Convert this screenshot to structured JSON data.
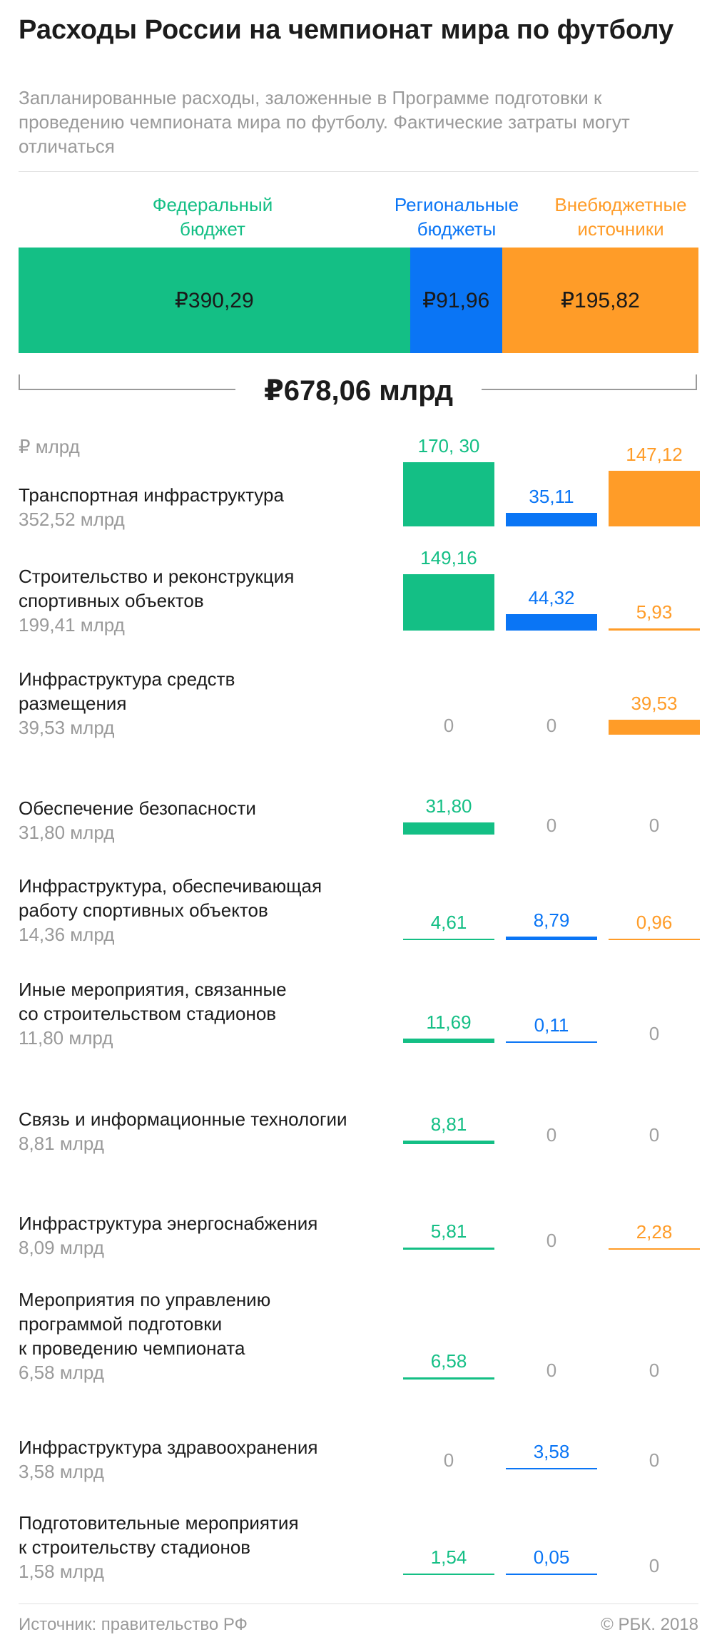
{
  "title": "Расходы России на чемпионат мира по футболу",
  "subtitle": "Запланированные расходы, заложенные в Программе подготовки к проведению чемпионата мира по футболу. Фактические затраты могут отличаться",
  "colors": {
    "federal": "#14bf85",
    "regional": "#0a75f5",
    "offbudget": "#ff9c28",
    "zero": "#a0a0a0"
  },
  "sources": [
    {
      "key": "federal",
      "label": "Федеральный\nбюджет"
    },
    {
      "key": "regional",
      "label": "Региональные\nбюджеты"
    },
    {
      "key": "offbudget",
      "label": "Внебюджетные\nисточники"
    }
  ],
  "total_label": "₽678,06 млрд",
  "unit_label": "₽ млрд",
  "footer": {
    "source": "Источник: правительство РФ",
    "copyright": "© РБК. 2018"
  },
  "chart_data": [
    {
      "type": "bar",
      "title": "",
      "categories": [
        "Федеральный бюджет",
        "Региональные бюджеты",
        "Внебюджетные источники"
      ],
      "values": [
        390.29,
        91.96,
        195.82
      ],
      "value_labels": [
        "₽390,29",
        "₽91,96",
        "₽195,82"
      ],
      "total": 678.06,
      "total_label": "₽678,06 млрд"
    },
    {
      "type": "bar",
      "title": "",
      "unit": "₽ млрд",
      "scale_max": 170.3,
      "series": [
        {
          "name": "Федеральный бюджет",
          "values": [
            170.3,
            149.16,
            0,
            31.8,
            4.61,
            11.69,
            8.81,
            5.81,
            6.58,
            0,
            1.54
          ],
          "labels": [
            "170, 30",
            "149,16",
            "0",
            "31,80",
            "4,61",
            "11,69",
            "8,81",
            "5,81",
            "6,58",
            "0",
            "1,54"
          ]
        },
        {
          "name": "Региональные бюджеты",
          "values": [
            35.11,
            44.32,
            0,
            0,
            8.79,
            0.11,
            0,
            0,
            0,
            3.58,
            0.05
          ],
          "labels": [
            "35,11",
            "44,32",
            "0",
            "0",
            "8,79",
            "0,11",
            "0",
            "0",
            "0",
            "3,58",
            "0,05"
          ]
        },
        {
          "name": "Внебюджетные источники",
          "values": [
            147.12,
            5.93,
            39.53,
            0,
            0.96,
            0,
            0,
            2.28,
            0,
            0,
            0
          ],
          "labels": [
            "147,12",
            "5,93",
            "39,53",
            "0",
            "0,96",
            "0",
            "0",
            "2,28",
            "0",
            "0",
            "0"
          ]
        }
      ],
      "categories": [
        {
          "name": "Транспортная инфраструктура",
          "total": "352,52 млрд"
        },
        {
          "name": "Строительство и реконструкция\nспортивных объектов",
          "total": "199,41 млрд"
        },
        {
          "name": "Инфраструктура средств\nразмещения",
          "total": "39,53 млрд"
        },
        {
          "name": "Обеспечение безопасности",
          "total": "31,80 млрд"
        },
        {
          "name": "Инфраструктура, обеспечивающая\nработу спортивных объектов",
          "total": "14,36 млрд"
        },
        {
          "name": "Иные мероприятия, связанные\nсо строительством стадионов",
          "total": "11,80 млрд"
        },
        {
          "name": "Связь и информационные технологии",
          "total": "8,81 млрд"
        },
        {
          "name": "Инфраструктура энергоснабжения",
          "total": "8,09 млрд"
        },
        {
          "name": "Мероприятия по управлению\nпрограммой подготовки\nк проведению чемпионата",
          "total": "6,58 млрд"
        },
        {
          "name": "Инфраструктура здравоохранения",
          "total": "3,58 млрд"
        },
        {
          "name": "Подготовительные мероприятия\nк строительству стадионов",
          "total": "1,58 млрд"
        }
      ]
    }
  ]
}
